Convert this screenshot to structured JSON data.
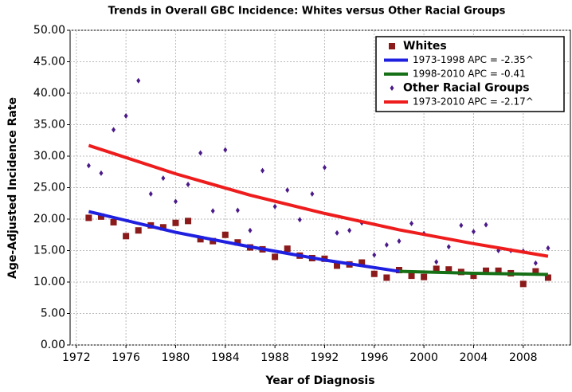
{
  "chart_data": {
    "type": "scatter",
    "title": "Trends in Overall GBC Incidence: Whites versus Other Racial Groups",
    "x_label": "Year of Diagnosis",
    "y_label": "Age-Adjusted Incidence Rate",
    "xlim": [
      1971.5,
      2011.8
    ],
    "ylim": [
      0,
      50
    ],
    "xticks": [
      1972,
      1976,
      1980,
      1984,
      1988,
      1992,
      1996,
      2000,
      2004,
      2008
    ],
    "yticks": [
      {
        "value": 0,
        "label": "0.00"
      },
      {
        "value": 5,
        "label": "5.00"
      },
      {
        "value": 10,
        "label": "10.00"
      },
      {
        "value": 15,
        "label": "15.00"
      },
      {
        "value": 20,
        "label": "20.00"
      },
      {
        "value": 25,
        "label": "25.00"
      },
      {
        "value": 30,
        "label": "30.00"
      },
      {
        "value": 35,
        "label": "35.00"
      },
      {
        "value": 40,
        "label": "40.00"
      },
      {
        "value": 45,
        "label": "45.00"
      },
      {
        "value": 50,
        "label": "50.00"
      }
    ],
    "legend": "top-right",
    "series": [
      {
        "name": "Whites",
        "marker": "square",
        "color": "#8b1a1a",
        "x": [
          1973,
          1974,
          1975,
          1976,
          1977,
          1978,
          1979,
          1980,
          1981,
          1982,
          1983,
          1984,
          1985,
          1986,
          1987,
          1988,
          1989,
          1990,
          1991,
          1992,
          1993,
          1994,
          1995,
          1996,
          1997,
          1998,
          1999,
          2000,
          2001,
          2002,
          2003,
          2004,
          2005,
          2006,
          2007,
          2008,
          2009,
          2010
        ],
        "values": [
          20.2,
          20.4,
          19.5,
          17.3,
          18.2,
          19.0,
          18.7,
          19.4,
          19.7,
          16.8,
          16.5,
          17.5,
          16.3,
          15.5,
          15.2,
          14.0,
          15.3,
          14.2,
          13.8,
          13.7,
          12.6,
          12.8,
          13.1,
          11.3,
          10.7,
          11.9,
          11.0,
          10.8,
          12.1,
          12.0,
          11.6,
          11.0,
          11.8,
          11.8,
          11.4,
          9.7,
          11.7,
          10.7
        ]
      },
      {
        "name": "1973-1998 APC  = -2.35^",
        "marker": "line",
        "color": "#1f1fe0",
        "x": [
          1973,
          1980,
          1986,
          1992,
          1998
        ],
        "values": [
          21.2,
          17.9,
          15.6,
          13.5,
          11.7
        ]
      },
      {
        "name": "1998-2010 APC  = -0.41",
        "marker": "line",
        "color": "#167016",
        "x": [
          1998,
          2004,
          2010
        ],
        "values": [
          11.7,
          11.4,
          11.2
        ]
      },
      {
        "name": "Other Racial Groups",
        "marker": "diamond",
        "color": "#4b1a8a",
        "x": [
          1973,
          1974,
          1975,
          1976,
          1977,
          1978,
          1979,
          1980,
          1981,
          1982,
          1983,
          1984,
          1985,
          1986,
          1987,
          1988,
          1989,
          1990,
          1991,
          1992,
          1993,
          1994,
          1995,
          1996,
          1997,
          1998,
          1999,
          2000,
          2001,
          2002,
          2003,
          2004,
          2005,
          2006,
          2007,
          2008,
          2009,
          2010
        ],
        "values": [
          28.5,
          27.3,
          34.2,
          36.4,
          42.0,
          24.0,
          26.5,
          22.8,
          25.5,
          30.5,
          21.3,
          31.0,
          21.4,
          18.2,
          27.7,
          22.0,
          24.6,
          19.9,
          24.0,
          28.2,
          17.8,
          18.2,
          19.4,
          14.3,
          15.9,
          16.5,
          19.3,
          17.7,
          13.2,
          15.6,
          19.0,
          18.0,
          19.1,
          15.0,
          15.0,
          14.9,
          13.0,
          15.4
        ]
      },
      {
        "name": "1973-2010 APC  = -2.17^",
        "marker": "line",
        "color": "#ee1c1c",
        "x": [
          1973,
          1980,
          1986,
          1992,
          1998,
          2004,
          2010
        ],
        "values": [
          31.7,
          27.2,
          23.8,
          20.9,
          18.3,
          16.1,
          14.1
        ]
      }
    ]
  }
}
